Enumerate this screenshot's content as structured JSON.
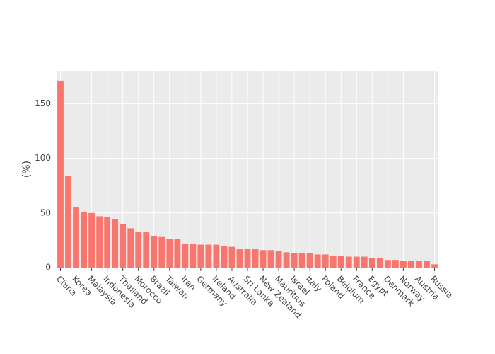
{
  "chart_data": {
    "type": "bar",
    "y_label": "(%)",
    "categories": [
      "China",
      null,
      "Korea",
      null,
      "Malaysia",
      null,
      "Indonesia",
      null,
      "Thailand",
      null,
      "Morocco",
      null,
      "Brazil",
      null,
      "Taiwan",
      null,
      "Iran",
      null,
      "Germany",
      null,
      "Ireland",
      null,
      "Australia",
      null,
      "Sri Lanka",
      null,
      "New Zealand",
      null,
      "Mauritius",
      null,
      "Israel",
      null,
      "Italy",
      null,
      "Poland",
      null,
      "Belgium",
      null,
      "France",
      null,
      "Egypt",
      null,
      "Denmark",
      null,
      "Norway",
      null,
      "Austria",
      null,
      "Russia"
    ],
    "values": [
      171,
      84,
      55,
      51,
      50,
      47,
      46,
      44,
      40,
      36,
      33,
      33,
      29,
      28,
      26,
      26,
      22,
      22,
      21,
      21,
      21,
      20,
      19,
      17,
      17,
      17,
      16,
      16,
      15,
      14,
      13,
      13,
      13,
      12,
      12,
      11,
      11,
      10,
      10,
      10,
      9,
      9,
      7,
      7,
      6,
      6,
      6,
      6,
      3
    ],
    "color": "#f8766d",
    "ylim": [
      0,
      180
    ],
    "yticks": [
      0,
      50,
      100,
      150
    ],
    "grid": true
  }
}
